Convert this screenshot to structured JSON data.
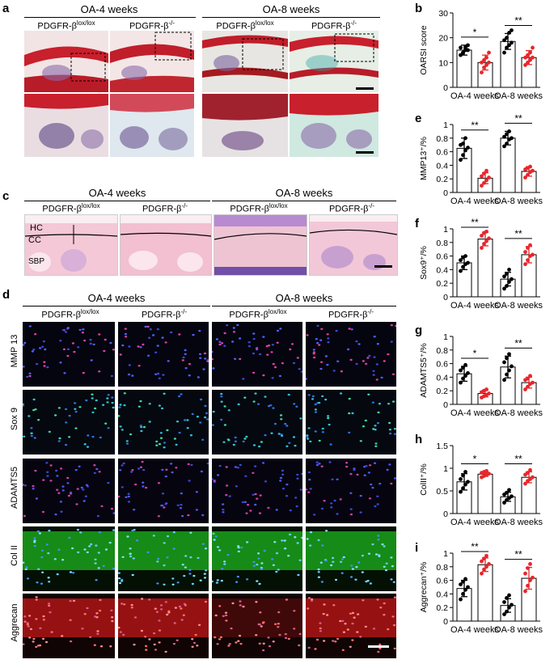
{
  "panel_a": {
    "label": "a",
    "groups": [
      "OA-4 weeks",
      "OA-8 weeks"
    ],
    "genotypes": [
      "PDGFR-β",
      "lox/lox",
      "PDGFR-β",
      "-/-"
    ]
  },
  "panel_c": {
    "label": "c",
    "groups": [
      "OA-4 weeks",
      "OA-8 weeks"
    ],
    "zone_labels": [
      "HC",
      "CC",
      "SBP"
    ]
  },
  "panel_d": {
    "label": "d",
    "groups": [
      "OA-4 weeks",
      "OA-8 weeks"
    ],
    "rows": [
      "MMP 13",
      "Sox 9",
      "ADAMTS5",
      "Col II",
      "Aggrecan"
    ]
  },
  "geno": {
    "flox_base": "PDGFR-β",
    "flox_sup": "lox/lox",
    "ko_base": "PDGFR-β",
    "ko_sup": "-/-"
  },
  "chart_data": [
    {
      "panel": "b",
      "type": "bar",
      "ylabel": "OARSI score",
      "categories": [
        "OA-4 weeks",
        "OA-8 weeks"
      ],
      "ylim": [
        0,
        30
      ],
      "yticks": [
        0,
        10,
        20,
        30
      ],
      "series": [
        {
          "values": [
            15,
            18.5
          ],
          "errors": [
            2,
            3.2
          ],
          "color": "#000000",
          "points": [
            [
              13,
              14,
              15,
              15,
              16,
              14,
              16,
              17
            ],
            [
              14,
              16,
              17,
              18,
              19,
              20,
              22,
              23
            ]
          ]
        },
        {
          "values": [
            10,
            12
          ],
          "errors": [
            3,
            2.8
          ],
          "color": "#e8262b",
          "points": [
            [
              6,
              8,
              9,
              10,
              10,
              11,
              12,
              14
            ],
            [
              9,
              10,
              11,
              12,
              12,
              13,
              14,
              16
            ]
          ]
        }
      ],
      "significance": [
        "*",
        "**"
      ]
    },
    {
      "panel": "e",
      "type": "bar",
      "ylabel": "MMP13⁺/%",
      "categories": [
        "OA-4 weeks",
        "OA-8 weeks"
      ],
      "ylim": [
        0,
        1.0
      ],
      "yticks": [
        0,
        0.2,
        0.4,
        0.6,
        0.8,
        1.0
      ],
      "series": [
        {
          "values": [
            0.65,
            0.8
          ],
          "errors": [
            0.15,
            0.1
          ],
          "color": "#000000",
          "points": [
            [
              0.48,
              0.55,
              0.62,
              0.66,
              0.7,
              0.72,
              0.8
            ],
            [
              0.68,
              0.72,
              0.78,
              0.8,
              0.82,
              0.86,
              0.9
            ]
          ]
        },
        {
          "values": [
            0.21,
            0.31
          ],
          "errors": [
            0.08,
            0.07
          ],
          "color": "#e8262b",
          "points": [
            [
              0.1,
              0.14,
              0.18,
              0.22,
              0.24,
              0.28,
              0.32
            ],
            [
              0.22,
              0.26,
              0.3,
              0.32,
              0.34,
              0.36,
              0.38
            ]
          ]
        }
      ],
      "significance": [
        "**",
        "**"
      ]
    },
    {
      "panel": "f",
      "type": "bar",
      "ylabel": "Sox9⁺/%",
      "categories": [
        "OA-4 weeks",
        "OA-8 weeks"
      ],
      "ylim": [
        0,
        1.0
      ],
      "yticks": [
        0,
        0.2,
        0.4,
        0.6,
        0.8,
        1.0
      ],
      "series": [
        {
          "values": [
            0.5,
            0.26
          ],
          "errors": [
            0.1,
            0.1
          ],
          "color": "#000000",
          "points": [
            [
              0.38,
              0.44,
              0.48,
              0.5,
              0.54,
              0.58,
              0.6
            ],
            [
              0.12,
              0.16,
              0.22,
              0.26,
              0.3,
              0.34,
              0.4
            ]
          ]
        },
        {
          "values": [
            0.85,
            0.62
          ],
          "errors": [
            0.1,
            0.12
          ],
          "color": "#e8262b",
          "points": [
            [
              0.72,
              0.78,
              0.82,
              0.86,
              0.9,
              0.94,
              0.96
            ],
            [
              0.48,
              0.54,
              0.6,
              0.62,
              0.66,
              0.72,
              0.76
            ]
          ]
        }
      ],
      "significance": [
        "**",
        "**"
      ]
    },
    {
      "panel": "g",
      "type": "bar",
      "ylabel": "ADAMTS5⁺/%",
      "categories": [
        "OA-4 weeks",
        "OA-8 weeks"
      ],
      "ylim": [
        0,
        1.0
      ],
      "yticks": [
        0,
        0.2,
        0.4,
        0.6,
        0.8,
        1.0
      ],
      "series": [
        {
          "values": [
            0.45,
            0.55
          ],
          "errors": [
            0.11,
            0.16
          ],
          "color": "#000000",
          "points": [
            [
              0.32,
              0.38,
              0.42,
              0.46,
              0.5,
              0.54,
              0.58
            ],
            [
              0.36,
              0.44,
              0.5,
              0.56,
              0.62,
              0.68,
              0.74
            ]
          ]
        },
        {
          "values": [
            0.16,
            0.32
          ],
          "errors": [
            0.05,
            0.08
          ],
          "color": "#e8262b",
          "points": [
            [
              0.1,
              0.12,
              0.14,
              0.16,
              0.18,
              0.2,
              0.22
            ],
            [
              0.22,
              0.26,
              0.3,
              0.32,
              0.36,
              0.38,
              0.42
            ]
          ]
        }
      ],
      "significance": [
        "*",
        "**"
      ]
    },
    {
      "panel": "h",
      "type": "bar",
      "ylabel": "ColII⁺/%",
      "categories": [
        "OA-4 weeks",
        "OA-8 weeks"
      ],
      "ylim": [
        0,
        1.5
      ],
      "yticks": [
        0,
        0.5,
        1.0,
        1.5
      ],
      "series": [
        {
          "values": [
            0.7,
            0.37
          ],
          "errors": [
            0.18,
            0.1
          ],
          "color": "#000000",
          "points": [
            [
              0.48,
              0.56,
              0.64,
              0.7,
              0.76,
              0.84,
              0.92
            ],
            [
              0.24,
              0.3,
              0.34,
              0.38,
              0.42,
              0.46,
              0.52
            ]
          ]
        },
        {
          "values": [
            0.87,
            0.8
          ],
          "errors": [
            0.05,
            0.12
          ],
          "color": "#e8262b",
          "points": [
            [
              0.8,
              0.83,
              0.86,
              0.88,
              0.9,
              0.92,
              0.94
            ],
            [
              0.66,
              0.72,
              0.76,
              0.8,
              0.86,
              0.9,
              0.96
            ]
          ]
        }
      ],
      "significance": [
        "*",
        "**"
      ]
    },
    {
      "panel": "i",
      "type": "bar",
      "ylabel": "Aggrecan⁺/%",
      "categories": [
        "OA-4 weeks",
        "OA-8 weeks"
      ],
      "ylim": [
        0,
        1.0
      ],
      "yticks": [
        0,
        0.2,
        0.4,
        0.6,
        0.8,
        1.0
      ],
      "series": [
        {
          "values": [
            0.48,
            0.23
          ],
          "errors": [
            0.12,
            0.1
          ],
          "color": "#000000",
          "points": [
            [
              0.32,
              0.4,
              0.46,
              0.5,
              0.54,
              0.58,
              0.62
            ],
            [
              0.1,
              0.14,
              0.2,
              0.24,
              0.28,
              0.34,
              0.38
            ]
          ]
        },
        {
          "values": [
            0.83,
            0.63
          ],
          "errors": [
            0.1,
            0.16
          ],
          "color": "#e8262b",
          "points": [
            [
              0.7,
              0.76,
              0.8,
              0.84,
              0.88,
              0.92,
              0.96
            ],
            [
              0.44,
              0.52,
              0.6,
              0.64,
              0.7,
              0.78,
              0.84
            ]
          ]
        }
      ],
      "significance": [
        "**",
        "**"
      ]
    }
  ]
}
